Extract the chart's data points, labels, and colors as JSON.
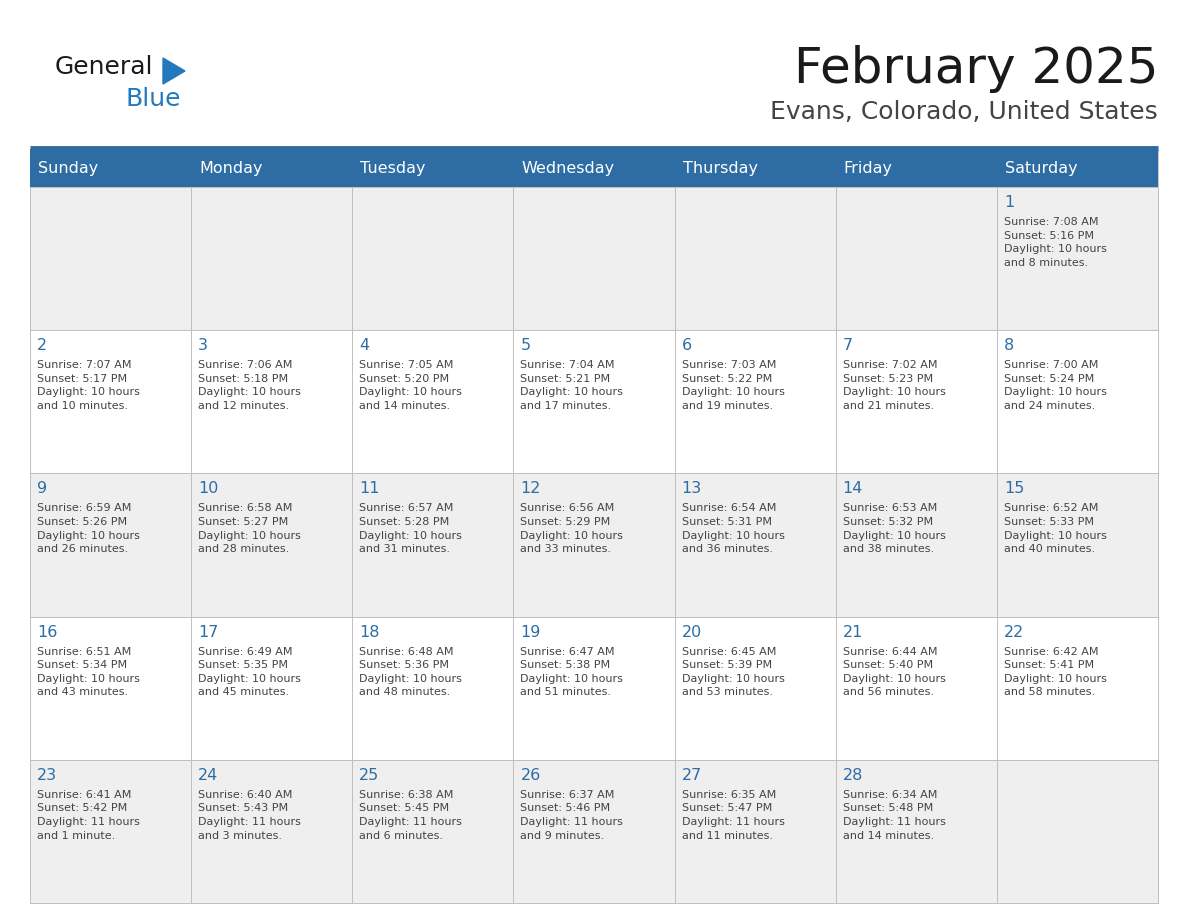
{
  "title": "February 2025",
  "subtitle": "Evans, Colorado, United States",
  "header_bg": "#2E6DA4",
  "header_text_color": "#FFFFFF",
  "cell_bg_odd": "#EFEFEF",
  "cell_bg_even": "#FFFFFF",
  "day_number_color": "#2E6DA4",
  "cell_text_color": "#444444",
  "days_of_week": [
    "Sunday",
    "Monday",
    "Tuesday",
    "Wednesday",
    "Thursday",
    "Friday",
    "Saturday"
  ],
  "weeks": [
    [
      {
        "day": "",
        "info": ""
      },
      {
        "day": "",
        "info": ""
      },
      {
        "day": "",
        "info": ""
      },
      {
        "day": "",
        "info": ""
      },
      {
        "day": "",
        "info": ""
      },
      {
        "day": "",
        "info": ""
      },
      {
        "day": "1",
        "info": "Sunrise: 7:08 AM\nSunset: 5:16 PM\nDaylight: 10 hours\nand 8 minutes."
      }
    ],
    [
      {
        "day": "2",
        "info": "Sunrise: 7:07 AM\nSunset: 5:17 PM\nDaylight: 10 hours\nand 10 minutes."
      },
      {
        "day": "3",
        "info": "Sunrise: 7:06 AM\nSunset: 5:18 PM\nDaylight: 10 hours\nand 12 minutes."
      },
      {
        "day": "4",
        "info": "Sunrise: 7:05 AM\nSunset: 5:20 PM\nDaylight: 10 hours\nand 14 minutes."
      },
      {
        "day": "5",
        "info": "Sunrise: 7:04 AM\nSunset: 5:21 PM\nDaylight: 10 hours\nand 17 minutes."
      },
      {
        "day": "6",
        "info": "Sunrise: 7:03 AM\nSunset: 5:22 PM\nDaylight: 10 hours\nand 19 minutes."
      },
      {
        "day": "7",
        "info": "Sunrise: 7:02 AM\nSunset: 5:23 PM\nDaylight: 10 hours\nand 21 minutes."
      },
      {
        "day": "8",
        "info": "Sunrise: 7:00 AM\nSunset: 5:24 PM\nDaylight: 10 hours\nand 24 minutes."
      }
    ],
    [
      {
        "day": "9",
        "info": "Sunrise: 6:59 AM\nSunset: 5:26 PM\nDaylight: 10 hours\nand 26 minutes."
      },
      {
        "day": "10",
        "info": "Sunrise: 6:58 AM\nSunset: 5:27 PM\nDaylight: 10 hours\nand 28 minutes."
      },
      {
        "day": "11",
        "info": "Sunrise: 6:57 AM\nSunset: 5:28 PM\nDaylight: 10 hours\nand 31 minutes."
      },
      {
        "day": "12",
        "info": "Sunrise: 6:56 AM\nSunset: 5:29 PM\nDaylight: 10 hours\nand 33 minutes."
      },
      {
        "day": "13",
        "info": "Sunrise: 6:54 AM\nSunset: 5:31 PM\nDaylight: 10 hours\nand 36 minutes."
      },
      {
        "day": "14",
        "info": "Sunrise: 6:53 AM\nSunset: 5:32 PM\nDaylight: 10 hours\nand 38 minutes."
      },
      {
        "day": "15",
        "info": "Sunrise: 6:52 AM\nSunset: 5:33 PM\nDaylight: 10 hours\nand 40 minutes."
      }
    ],
    [
      {
        "day": "16",
        "info": "Sunrise: 6:51 AM\nSunset: 5:34 PM\nDaylight: 10 hours\nand 43 minutes."
      },
      {
        "day": "17",
        "info": "Sunrise: 6:49 AM\nSunset: 5:35 PM\nDaylight: 10 hours\nand 45 minutes."
      },
      {
        "day": "18",
        "info": "Sunrise: 6:48 AM\nSunset: 5:36 PM\nDaylight: 10 hours\nand 48 minutes."
      },
      {
        "day": "19",
        "info": "Sunrise: 6:47 AM\nSunset: 5:38 PM\nDaylight: 10 hours\nand 51 minutes."
      },
      {
        "day": "20",
        "info": "Sunrise: 6:45 AM\nSunset: 5:39 PM\nDaylight: 10 hours\nand 53 minutes."
      },
      {
        "day": "21",
        "info": "Sunrise: 6:44 AM\nSunset: 5:40 PM\nDaylight: 10 hours\nand 56 minutes."
      },
      {
        "day": "22",
        "info": "Sunrise: 6:42 AM\nSunset: 5:41 PM\nDaylight: 10 hours\nand 58 minutes."
      }
    ],
    [
      {
        "day": "23",
        "info": "Sunrise: 6:41 AM\nSunset: 5:42 PM\nDaylight: 11 hours\nand 1 minute."
      },
      {
        "day": "24",
        "info": "Sunrise: 6:40 AM\nSunset: 5:43 PM\nDaylight: 11 hours\nand 3 minutes."
      },
      {
        "day": "25",
        "info": "Sunrise: 6:38 AM\nSunset: 5:45 PM\nDaylight: 11 hours\nand 6 minutes."
      },
      {
        "day": "26",
        "info": "Sunrise: 6:37 AM\nSunset: 5:46 PM\nDaylight: 11 hours\nand 9 minutes."
      },
      {
        "day": "27",
        "info": "Sunrise: 6:35 AM\nSunset: 5:47 PM\nDaylight: 11 hours\nand 11 minutes."
      },
      {
        "day": "28",
        "info": "Sunrise: 6:34 AM\nSunset: 5:48 PM\nDaylight: 11 hours\nand 14 minutes."
      },
      {
        "day": "",
        "info": ""
      }
    ]
  ],
  "logo_color_general": "#1a1a1a",
  "logo_color_blue": "#2279BE",
  "title_color": "#1a1a1a",
  "subtitle_color": "#444444",
  "line_color": "#2E6DA4",
  "border_color": "#BBBBBB",
  "figsize": [
    11.88,
    9.18
  ],
  "dpi": 100
}
